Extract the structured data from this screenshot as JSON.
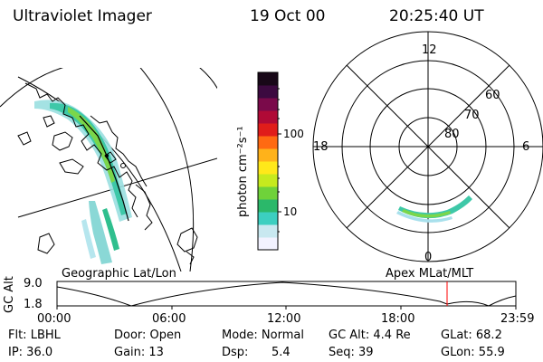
{
  "header": {
    "title": "Ultraviolet Imager",
    "date": "19 Oct 00",
    "time": "20:25:40 UT"
  },
  "panels": {
    "geographic_label": "Geographic Lat/Lon",
    "apex_label": "Apex MLat/MLT"
  },
  "colorbar": {
    "unit_label": "photon cm⁻²s⁻¹",
    "ticks": [
      "100",
      "10"
    ],
    "colors": [
      "#f2f2ff",
      "#c8e8f0",
      "#3ccfc0",
      "#2bb86a",
      "#6fd23a",
      "#c6ea1e",
      "#ffe81a",
      "#ffb21a",
      "#ff6a12",
      "#e01d1a",
      "#b00a36",
      "#7a0a4a",
      "#3c0a40",
      "#180818"
    ]
  },
  "polar_plot": {
    "mlt_labels": {
      "top": "12",
      "right": "6",
      "bottom": "0",
      "left": "18"
    },
    "lat_labels": [
      "60",
      "70",
      "80"
    ]
  },
  "timeline": {
    "ylabel": "GC Alt",
    "yticks": [
      "9.0",
      "1.8"
    ],
    "xticks": [
      "00:00",
      "06:00",
      "12:00",
      "18:00",
      "23:59"
    ],
    "marker_color": "#ff0000"
  },
  "info": {
    "row1": {
      "flt": "Flt: LBHL",
      "door": "Door: Open",
      "mode": "Mode: Normal",
      "gc_alt": "GC Alt: 4.4 Re",
      "glat": "GLat: 68.2"
    },
    "row2": {
      "ip": "IP: 36.0",
      "gain": "Gain: 13",
      "dsp_label": "Dsp:",
      "dsp_value": "5.4",
      "seq": "Seq: 39",
      "glon": "GLon: 55.9"
    }
  }
}
